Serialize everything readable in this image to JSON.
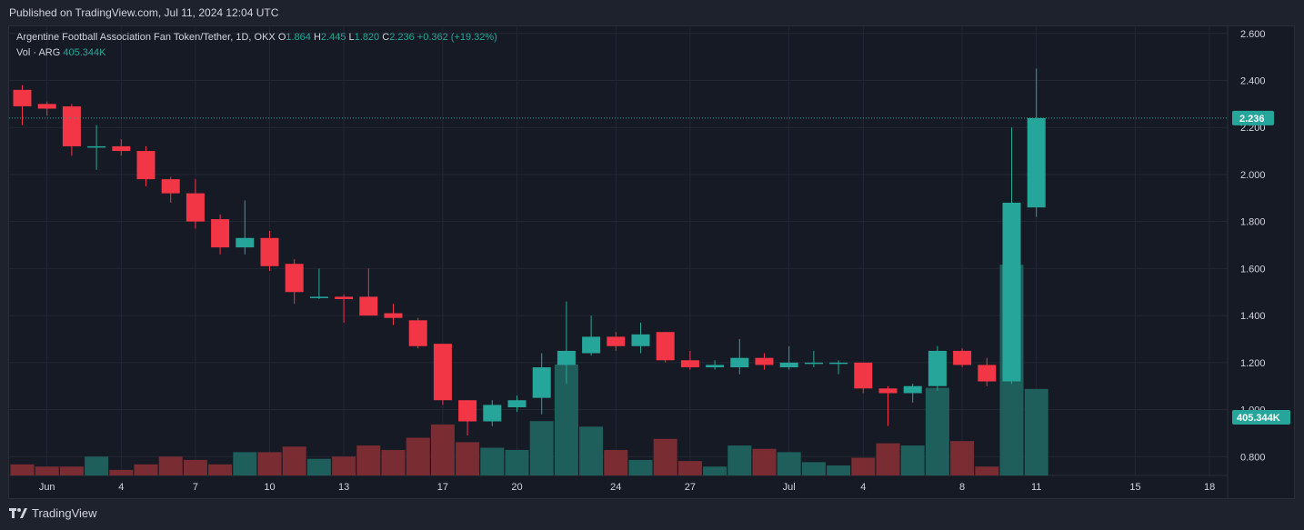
{
  "published": "Published on TradingView.com, Jul 11, 2024 12:04 UTC",
  "legend": {
    "symbol": "Argentine Football Association Fan Token/Tether, 1D, OKX",
    "o_label": "O",
    "o_value": "1.864",
    "h_label": "H",
    "h_value": "2.445",
    "l_label": "L",
    "l_value": "1.820",
    "c_label": "C",
    "c_value": "2.236",
    "change": "+0.362 (+19.32%)",
    "vol_label": "Vol · ARG",
    "vol_value": "405.344K"
  },
  "footer": {
    "brand": "TradingView",
    "logo": "tradingview-logo-icon"
  },
  "colors": {
    "up": "#26a69a",
    "down": "#f23645",
    "up_vol": "#1f5f5b",
    "down_vol": "#7a2c33",
    "bg": "#161a25",
    "grid": "#232733"
  },
  "chart_data": {
    "type": "candlestick",
    "price_axis": {
      "ticks": [
        "0.800",
        "1.000",
        "1.200",
        "1.400",
        "1.600",
        "1.800",
        "2.000",
        "2.200",
        "2.400",
        "2.600"
      ],
      "range": [
        0.72,
        2.63
      ]
    },
    "last_price_label": "2.236",
    "last_volume_label": "405.344K",
    "x_ticks": [
      {
        "label": "Jun",
        "index": 1
      },
      {
        "label": "4",
        "index": 4
      },
      {
        "label": "7",
        "index": 7
      },
      {
        "label": "10",
        "index": 10
      },
      {
        "label": "13",
        "index": 13
      },
      {
        "label": "17",
        "index": 17
      },
      {
        "label": "20",
        "index": 20
      },
      {
        "label": "24",
        "index": 24
      },
      {
        "label": "27",
        "index": 27
      },
      {
        "label": "Jul",
        "index": 31
      },
      {
        "label": "4",
        "index": 34
      },
      {
        "label": "8",
        "index": 38
      },
      {
        "label": "11",
        "index": 41
      },
      {
        "label": "15",
        "index": 45
      },
      {
        "label": "18",
        "index": 48
      }
    ],
    "candles": [
      {
        "o": 2.36,
        "h": 2.38,
        "l": 2.21,
        "c": 2.29,
        "v": 0.1
      },
      {
        "o": 2.3,
        "h": 2.31,
        "l": 2.25,
        "c": 2.28,
        "v": 0.08
      },
      {
        "o": 2.29,
        "h": 2.3,
        "l": 2.08,
        "c": 2.12,
        "v": 0.08
      },
      {
        "o": 2.12,
        "h": 2.21,
        "l": 2.02,
        "c": 2.12,
        "v": 0.17
      },
      {
        "o": 2.12,
        "h": 2.15,
        "l": 2.08,
        "c": 2.1,
        "v": 0.05
      },
      {
        "o": 2.1,
        "h": 2.12,
        "l": 1.95,
        "c": 1.98,
        "v": 0.1
      },
      {
        "o": 1.98,
        "h": 1.99,
        "l": 1.88,
        "c": 1.92,
        "v": 0.17
      },
      {
        "o": 1.92,
        "h": 1.98,
        "l": 1.77,
        "c": 1.8,
        "v": 0.14
      },
      {
        "o": 1.81,
        "h": 1.83,
        "l": 1.66,
        "c": 1.69,
        "v": 0.1
      },
      {
        "o": 1.69,
        "h": 1.89,
        "l": 1.66,
        "c": 1.73,
        "v": 0.21
      },
      {
        "o": 1.73,
        "h": 1.76,
        "l": 1.59,
        "c": 1.61,
        "v": 0.21
      },
      {
        "o": 1.62,
        "h": 1.64,
        "l": 1.45,
        "c": 1.5,
        "v": 0.26
      },
      {
        "o": 1.48,
        "h": 1.6,
        "l": 1.47,
        "c": 1.48,
        "v": 0.15
      },
      {
        "o": 1.48,
        "h": 1.49,
        "l": 1.37,
        "c": 1.47,
        "v": 0.17
      },
      {
        "o": 1.48,
        "h": 1.6,
        "l": 1.4,
        "c": 1.4,
        "v": 0.27
      },
      {
        "o": 1.41,
        "h": 1.45,
        "l": 1.36,
        "c": 1.39,
        "v": 0.23
      },
      {
        "o": 1.38,
        "h": 1.39,
        "l": 1.26,
        "c": 1.27,
        "v": 0.34
      },
      {
        "o": 1.28,
        "h": 1.28,
        "l": 1.02,
        "c": 1.04,
        "v": 0.46
      },
      {
        "o": 1.04,
        "h": 1.04,
        "l": 0.89,
        "c": 0.95,
        "v": 0.3
      },
      {
        "o": 0.95,
        "h": 1.04,
        "l": 0.93,
        "c": 1.02,
        "v": 0.25
      },
      {
        "o": 1.01,
        "h": 1.06,
        "l": 0.99,
        "c": 1.04,
        "v": 0.23
      },
      {
        "o": 1.05,
        "h": 1.24,
        "l": 0.98,
        "c": 1.18,
        "v": 0.49
      },
      {
        "o": 1.19,
        "h": 1.46,
        "l": 1.11,
        "c": 1.25,
        "v": 1.0
      },
      {
        "o": 1.24,
        "h": 1.4,
        "l": 1.23,
        "c": 1.31,
        "v": 0.44
      },
      {
        "o": 1.31,
        "h": 1.33,
        "l": 1.25,
        "c": 1.27,
        "v": 0.23
      },
      {
        "o": 1.27,
        "h": 1.37,
        "l": 1.24,
        "c": 1.32,
        "v": 0.14
      },
      {
        "o": 1.33,
        "h": 1.33,
        "l": 1.2,
        "c": 1.21,
        "v": 0.33
      },
      {
        "o": 1.21,
        "h": 1.25,
        "l": 1.17,
        "c": 1.18,
        "v": 0.13
      },
      {
        "o": 1.18,
        "h": 1.21,
        "l": 1.17,
        "c": 1.19,
        "v": 0.08
      },
      {
        "o": 1.18,
        "h": 1.3,
        "l": 1.15,
        "c": 1.22,
        "v": 0.27
      },
      {
        "o": 1.22,
        "h": 1.24,
        "l": 1.17,
        "c": 1.19,
        "v": 0.24
      },
      {
        "o": 1.18,
        "h": 1.27,
        "l": 1.17,
        "c": 1.2,
        "v": 0.21
      },
      {
        "o": 1.2,
        "h": 1.25,
        "l": 1.18,
        "c": 1.2,
        "v": 0.12
      },
      {
        "o": 1.2,
        "h": 1.21,
        "l": 1.15,
        "c": 1.2,
        "v": 0.09
      },
      {
        "o": 1.2,
        "h": 1.2,
        "l": 1.07,
        "c": 1.09,
        "v": 0.16
      },
      {
        "o": 1.09,
        "h": 1.1,
        "l": 0.93,
        "c": 1.07,
        "v": 0.29
      },
      {
        "o": 1.07,
        "h": 1.11,
        "l": 1.03,
        "c": 1.1,
        "v": 0.27
      },
      {
        "o": 1.1,
        "h": 1.27,
        "l": 1.08,
        "c": 1.25,
        "v": 0.79
      },
      {
        "o": 1.25,
        "h": 1.26,
        "l": 1.18,
        "c": 1.19,
        "v": 0.31
      },
      {
        "o": 1.19,
        "h": 1.22,
        "l": 1.1,
        "c": 1.12,
        "v": 0.08
      },
      {
        "o": 1.12,
        "h": 2.2,
        "l": 1.11,
        "c": 1.88,
        "v": 1.9
      },
      {
        "o": 1.86,
        "h": 2.45,
        "l": 1.82,
        "c": 2.24,
        "v": 0.78
      }
    ]
  }
}
